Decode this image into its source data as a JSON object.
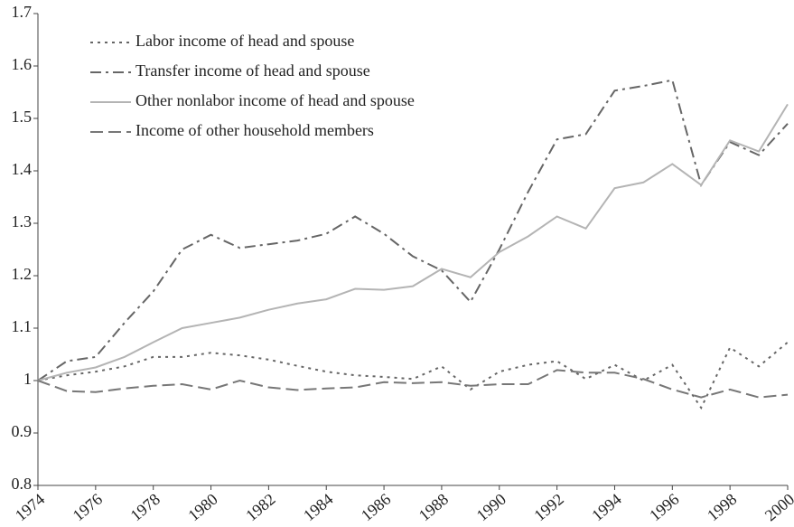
{
  "chart_data": {
    "type": "line",
    "x": [
      1974,
      1975,
      1976,
      1977,
      1978,
      1979,
      1980,
      1981,
      1982,
      1983,
      1984,
      1985,
      1986,
      1987,
      1988,
      1989,
      1990,
      1991,
      1992,
      1993,
      1994,
      1995,
      1996,
      1997,
      1998,
      1999,
      2000
    ],
    "series": [
      {
        "name": "Labor income of head and spouse",
        "color": "#666666",
        "style": "dotted",
        "values": [
          1.0,
          1.01,
          1.017,
          1.027,
          1.045,
          1.045,
          1.053,
          1.048,
          1.04,
          1.028,
          1.017,
          1.01,
          1.007,
          1.003,
          1.027,
          0.983,
          1.017,
          1.03,
          1.037,
          1.003,
          1.03,
          1.0,
          1.03,
          0.948,
          1.063,
          1.027,
          1.073
        ]
      },
      {
        "name": "Transfer income of head and spouse",
        "color": "#666666",
        "style": "dashdot",
        "values": [
          1.0,
          1.037,
          1.045,
          1.11,
          1.17,
          1.25,
          1.278,
          1.253,
          1.26,
          1.267,
          1.28,
          1.313,
          1.28,
          1.237,
          1.21,
          1.15,
          1.25,
          1.36,
          1.46,
          1.47,
          1.553,
          1.562,
          1.573,
          1.373,
          1.455,
          1.43,
          1.49
        ]
      },
      {
        "name": "Other nonlabor income of head and spouse",
        "color": "#b4b4b4",
        "style": "solid",
        "values": [
          1.0,
          1.015,
          1.025,
          1.045,
          1.073,
          1.1,
          1.11,
          1.12,
          1.135,
          1.147,
          1.155,
          1.175,
          1.173,
          1.18,
          1.213,
          1.197,
          1.245,
          1.275,
          1.313,
          1.29,
          1.367,
          1.378,
          1.413,
          1.373,
          1.458,
          1.437,
          1.527
        ]
      },
      {
        "name": "Income of other household members",
        "color": "#777777",
        "style": "dashed",
        "values": [
          1.0,
          0.98,
          0.978,
          0.985,
          0.99,
          0.993,
          0.983,
          1.0,
          0.987,
          0.982,
          0.985,
          0.987,
          0.997,
          0.995,
          0.997,
          0.99,
          0.993,
          0.993,
          1.02,
          1.015,
          1.015,
          1.003,
          0.983,
          0.968,
          0.983,
          0.968,
          0.973
        ]
      }
    ],
    "xlim": [
      1974,
      2000
    ],
    "xticks": [
      1974,
      1976,
      1978,
      1980,
      1982,
      1984,
      1986,
      1988,
      1990,
      1992,
      1994,
      1996,
      1998,
      2000
    ],
    "ylim": [
      0.8,
      1.7
    ],
    "yticks": [
      0.8,
      0.9,
      1,
      1.1,
      1.2,
      1.3,
      1.4,
      1.5,
      1.6,
      1.7
    ],
    "grid": false,
    "legend": "upper left"
  }
}
